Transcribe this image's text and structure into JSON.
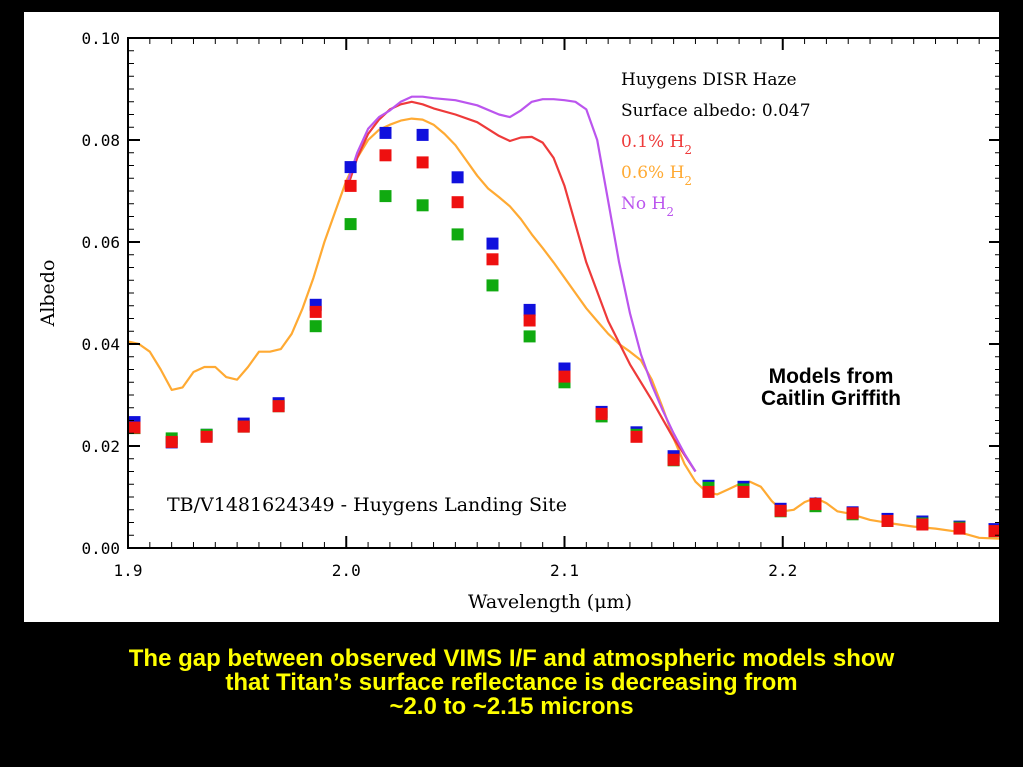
{
  "chart_data": {
    "type": "scatter",
    "title": "",
    "xlabel": "Wavelength (μm)",
    "ylabel": "Albedo",
    "xlim": [
      1.9,
      2.3
    ],
    "ylim": [
      0.0,
      0.1
    ],
    "xticks": [
      "1.9",
      "2.0",
      "2.1",
      "2.2"
    ],
    "xtick_values": [
      1.9,
      2.0,
      2.1,
      2.2
    ],
    "yticks": [
      "0.00",
      "0.02",
      "0.04",
      "0.06",
      "0.08",
      "0.10"
    ],
    "ytick_values": [
      0.0,
      0.02,
      0.04,
      0.06,
      0.08,
      0.1
    ],
    "grid": false,
    "legend_placement": "top-right",
    "legend_header": [
      "Huygens DISR Haze",
      "Surface albedo: 0.047"
    ],
    "annotations": {
      "run_label": "TB/V1481624349 - Huygens Landing Site",
      "credit": [
        "Models from",
        "Caitlin Griffith"
      ]
    },
    "x": [
      1.903,
      1.92,
      1.936,
      1.953,
      1.969,
      1.986,
      2.002,
      2.018,
      2.035,
      2.051,
      2.067,
      2.084,
      2.1,
      2.117,
      2.133,
      2.15,
      2.166,
      2.182,
      2.199,
      2.215,
      2.232,
      2.248,
      2.264,
      2.281,
      2.297
    ],
    "points": [
      {
        "name": "",
        "color": "#1010dd",
        "values": [
          0.0245,
          0.0205,
          0.022,
          0.0242,
          0.0282,
          0.0475,
          0.0745,
          0.0812,
          0.0808,
          0.0725,
          0.0595,
          0.0465,
          0.035,
          0.0265,
          0.0225,
          0.0178,
          0.012,
          0.0118,
          0.0075,
          0.0085,
          0.0068,
          0.0055,
          0.005,
          0.004,
          0.0035
        ]
      },
      {
        "name": "",
        "color": "#10aa10",
        "values": [
          0.0235,
          0.0215,
          0.0222,
          0.0238,
          0.0278,
          0.0435,
          0.0635,
          0.069,
          0.0672,
          0.0615,
          0.0515,
          0.0415,
          0.0325,
          0.0258,
          0.0222,
          0.0172,
          0.0118,
          0.0115,
          0.0072,
          0.0082,
          0.0066,
          0.0053,
          0.0048,
          0.004,
          0.0033
        ]
      },
      {
        "name": "",
        "color": "#ee1010",
        "values": [
          0.0238,
          0.021,
          0.022,
          0.024,
          0.028,
          0.0465,
          0.0712,
          0.0772,
          0.0758,
          0.068,
          0.0568,
          0.0448,
          0.0338,
          0.0265,
          0.022,
          0.0175,
          0.0112,
          0.0112,
          0.0075,
          0.0088,
          0.007,
          0.0055,
          0.0048,
          0.004,
          0.0035
        ]
      }
    ],
    "series": [
      {
        "name": "0.1% H",
        "sub": "2",
        "color": "#ee3a3a",
        "x": [
          2.0,
          2.005,
          2.01,
          2.015,
          2.02,
          2.025,
          2.03,
          2.035,
          2.04,
          2.05,
          2.06,
          2.07,
          2.075,
          2.08,
          2.085,
          2.09,
          2.095,
          2.1,
          2.11,
          2.12,
          2.13,
          2.14,
          2.15,
          2.16
        ],
        "values": [
          0.07,
          0.0765,
          0.0812,
          0.084,
          0.086,
          0.087,
          0.0875,
          0.087,
          0.0862,
          0.085,
          0.0835,
          0.0808,
          0.0798,
          0.0805,
          0.0806,
          0.0795,
          0.0765,
          0.071,
          0.056,
          0.0445,
          0.036,
          0.029,
          0.0215,
          0.015
        ]
      },
      {
        "name": "0.6% H",
        "sub": "2",
        "color": "#ffaa33",
        "x": [
          1.9,
          1.905,
          1.91,
          1.915,
          1.92,
          1.925,
          1.93,
          1.935,
          1.94,
          1.945,
          1.95,
          1.955,
          1.96,
          1.965,
          1.97,
          1.975,
          1.98,
          1.985,
          1.99,
          1.995,
          2.0,
          2.005,
          2.01,
          2.015,
          2.02,
          2.025,
          2.03,
          2.035,
          2.04,
          2.045,
          2.05,
          2.055,
          2.06,
          2.065,
          2.07,
          2.075,
          2.08,
          2.085,
          2.09,
          2.095,
          2.1,
          2.105,
          2.11,
          2.115,
          2.12,
          2.125,
          2.13,
          2.135,
          2.14,
          2.145,
          2.15,
          2.155,
          2.16,
          2.165,
          2.17,
          2.175,
          2.18,
          2.185,
          2.19,
          2.195,
          2.2,
          2.205,
          2.21,
          2.215,
          2.22,
          2.225,
          2.23,
          2.24,
          2.25,
          2.26,
          2.27,
          2.28,
          2.29,
          2.3
        ],
        "values": [
          0.0405,
          0.04,
          0.0385,
          0.035,
          0.031,
          0.0315,
          0.0345,
          0.0355,
          0.0355,
          0.0335,
          0.033,
          0.0355,
          0.0385,
          0.0385,
          0.039,
          0.042,
          0.047,
          0.053,
          0.06,
          0.066,
          0.072,
          0.0765,
          0.08,
          0.082,
          0.083,
          0.0838,
          0.0842,
          0.084,
          0.083,
          0.0812,
          0.079,
          0.076,
          0.073,
          0.0705,
          0.0688,
          0.067,
          0.0645,
          0.0615,
          0.0588,
          0.056,
          0.053,
          0.05,
          0.047,
          0.0445,
          0.042,
          0.04,
          0.0385,
          0.0368,
          0.033,
          0.0275,
          0.0215,
          0.0165,
          0.013,
          0.011,
          0.0105,
          0.0115,
          0.0125,
          0.013,
          0.012,
          0.0092,
          0.0072,
          0.0075,
          0.009,
          0.0098,
          0.0088,
          0.0072,
          0.0068,
          0.0055,
          0.0048,
          0.0042,
          0.0038,
          0.0032,
          0.002,
          0.0018
        ]
      },
      {
        "name": "No H",
        "sub": "2",
        "color": "#bb55ee",
        "x": [
          2.0,
          2.005,
          2.01,
          2.015,
          2.02,
          2.025,
          2.03,
          2.035,
          2.04,
          2.05,
          2.06,
          2.07,
          2.075,
          2.08,
          2.085,
          2.09,
          2.095,
          2.1,
          2.105,
          2.11,
          2.115,
          2.12,
          2.125,
          2.13,
          2.135,
          2.14,
          2.145,
          2.15,
          2.155,
          2.16
        ],
        "values": [
          0.071,
          0.0775,
          0.0822,
          0.0845,
          0.0858,
          0.0875,
          0.0885,
          0.0885,
          0.0882,
          0.0878,
          0.0868,
          0.085,
          0.0845,
          0.0858,
          0.0875,
          0.088,
          0.088,
          0.0878,
          0.0875,
          0.086,
          0.08,
          0.068,
          0.056,
          0.046,
          0.038,
          0.032,
          0.027,
          0.0225,
          0.0185,
          0.015
        ]
      }
    ]
  },
  "caption": {
    "lines": [
      "The gap between observed VIMS I/F and atmospheric models show",
      "that Titan’s surface reflectance is decreasing from",
      "~2.0 to ~2.15 microns"
    ]
  }
}
